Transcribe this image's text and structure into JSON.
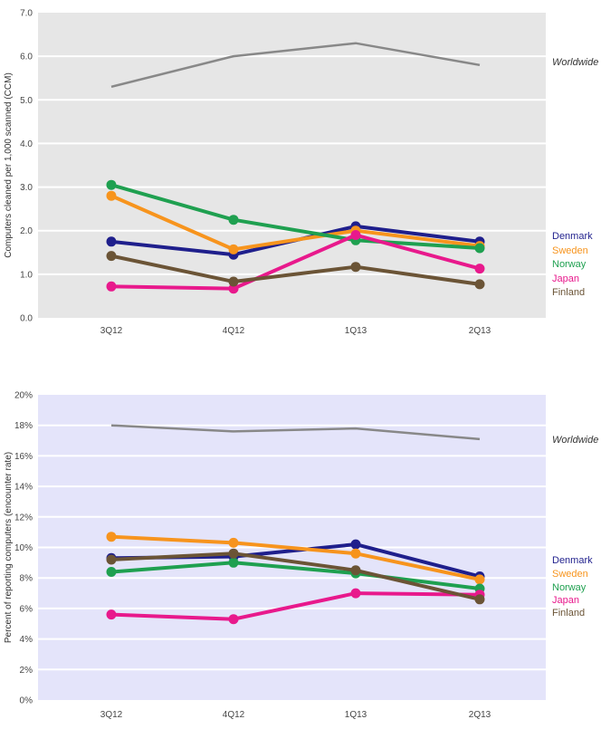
{
  "chart_data": [
    {
      "type": "line",
      "ylabel": "Computers cleaned per 1,000 scanned (CCM)",
      "categories": [
        "3Q12",
        "4Q12",
        "1Q13",
        "2Q13"
      ],
      "ylim": [
        0,
        7
      ],
      "yticks": [
        "0.0",
        "1.0",
        "2.0",
        "3.0",
        "4.0",
        "5.0",
        "6.0",
        "7.0"
      ],
      "background": "#e6e6e6",
      "worldwide": {
        "name": "Worldwide",
        "values": [
          5.3,
          6.0,
          6.3,
          5.8
        ],
        "color": "#888888"
      },
      "series": [
        {
          "name": "Denmark",
          "values": [
            1.75,
            1.45,
            2.1,
            1.75
          ],
          "color": "#1f1f8c"
        },
        {
          "name": "Sweden",
          "values": [
            2.8,
            1.57,
            2.0,
            1.65
          ],
          "color": "#f7941d"
        },
        {
          "name": "Norway",
          "values": [
            3.05,
            2.25,
            1.78,
            1.6
          ],
          "color": "#1fa050"
        },
        {
          "name": "Japan",
          "values": [
            0.72,
            0.67,
            1.9,
            1.13
          ],
          "color": "#e8198c"
        },
        {
          "name": "Finland",
          "values": [
            1.42,
            0.83,
            1.17,
            0.77
          ],
          "color": "#6b5436"
        }
      ]
    },
    {
      "type": "line",
      "ylabel": "Percent of reporting computers (encounter rate)",
      "categories": [
        "3Q12",
        "4Q12",
        "1Q13",
        "2Q13"
      ],
      "ylim": [
        0,
        20
      ],
      "yticks": [
        "0%",
        "2%",
        "4%",
        "6%",
        "8%",
        "10%",
        "12%",
        "14%",
        "16%",
        "18%",
        "20%"
      ],
      "background": "#e4e4fa",
      "worldwide": {
        "name": "Worldwide",
        "values": [
          18.0,
          17.6,
          17.8,
          17.1
        ],
        "color": "#888888"
      },
      "series": [
        {
          "name": "Denmark",
          "values": [
            9.3,
            9.4,
            10.2,
            8.1
          ],
          "color": "#1f1f8c"
        },
        {
          "name": "Sweden",
          "values": [
            10.7,
            10.3,
            9.6,
            7.9
          ],
          "color": "#f7941d"
        },
        {
          "name": "Norway",
          "values": [
            8.4,
            9.0,
            8.3,
            7.3
          ],
          "color": "#1fa050"
        },
        {
          "name": "Japan",
          "values": [
            5.6,
            5.3,
            7.0,
            6.9
          ],
          "color": "#e8198c"
        },
        {
          "name": "Finland",
          "values": [
            9.2,
            9.6,
            8.5,
            6.6
          ],
          "color": "#6b5436"
        }
      ]
    }
  ]
}
